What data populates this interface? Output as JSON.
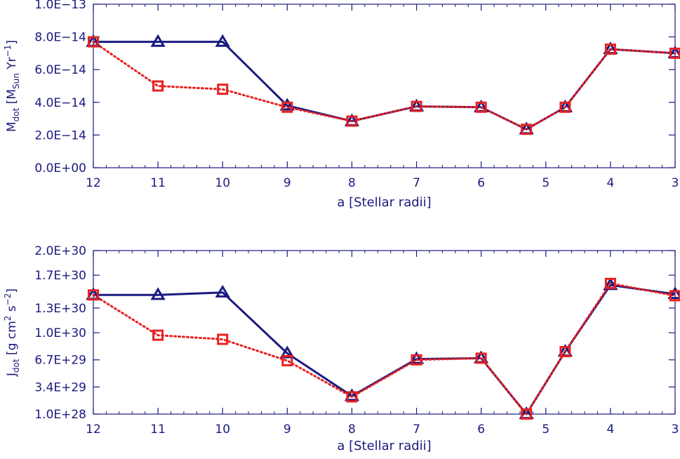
{
  "colors": {
    "axis": "#1a1a80",
    "series_blue": "#1a1a80",
    "series_red": "#e82020"
  },
  "chart_data": [
    {
      "type": "line",
      "x": [
        12,
        11,
        10,
        9,
        8,
        7,
        6,
        5.3,
        4.7,
        4,
        3
      ],
      "x_tick_values": [
        12,
        11,
        10,
        9,
        8,
        7,
        6,
        5,
        4,
        3
      ],
      "x_tick_labels": [
        "12",
        "11",
        "10",
        "9",
        "8",
        "7",
        "6",
        "5",
        "4",
        "3"
      ],
      "xlim": [
        12,
        3
      ],
      "xlabel": "a [Stellar radii]",
      "ylabel": {
        "main": "M",
        "sub1": "dot",
        "mid": " [M",
        "sub2": "Sun",
        "rest": " Yr",
        "sup": "−1",
        "end": "]"
      },
      "ylim": [
        0,
        1e-13
      ],
      "y_tick_values": [
        0,
        2e-14,
        4e-14,
        6e-14,
        8e-14,
        1e-13
      ],
      "y_tick_labels": [
        "0.0E+00",
        "2.0E−14",
        "4.0E−14",
        "6.0E−14",
        "8.0E−14",
        "1.0E−13"
      ],
      "series": [
        {
          "marker": "triangle",
          "line": "solid",
          "color": "#1a1a80",
          "values": [
            7.7e-14,
            7.7e-14,
            7.7e-14,
            3.8e-14,
            2.85e-14,
            3.75e-14,
            3.7e-14,
            2.35e-14,
            3.7e-14,
            7.25e-14,
            7e-14
          ]
        },
        {
          "marker": "square",
          "line": "dotted",
          "color": "#e82020",
          "values": [
            7.7e-14,
            5e-14,
            4.8e-14,
            3.7e-14,
            2.85e-14,
            3.75e-14,
            3.7e-14,
            2.35e-14,
            3.7e-14,
            7.25e-14,
            7e-14
          ]
        }
      ]
    },
    {
      "type": "line",
      "x": [
        12,
        11,
        10,
        9,
        8,
        7,
        6,
        5.3,
        4.7,
        4,
        3
      ],
      "x_tick_values": [
        12,
        11,
        10,
        9,
        8,
        7,
        6,
        5,
        4,
        3
      ],
      "x_tick_labels": [
        "12",
        "11",
        "10",
        "9",
        "8",
        "7",
        "6",
        "5",
        "4",
        "3"
      ],
      "xlim": [
        12,
        3
      ],
      "xlabel": "a [Stellar radii]",
      "ylabel": {
        "main": "J",
        "sub1": "dot",
        "mid": " [g cm",
        "sup1": "2",
        "mid2": " s",
        "sup2": "−2",
        "end": "]"
      },
      "ylim": [
        1e+28,
        2e+30
      ],
      "y_tick_values": [
        1e+28,
        3.4e+29,
        6.7e+29,
        1e+30,
        1.3e+30,
        1.7e+30,
        2e+30
      ],
      "y_tick_labels": [
        "1.0E+28",
        "3.4E+29",
        "6.7E+29",
        "1.0E+30",
        "1.3E+30",
        "1.7E+30",
        "2.0E+30"
      ],
      "series": [
        {
          "marker": "triangle",
          "line": "solid",
          "color": "#1a1a80",
          "values": [
            1.46e+30,
            1.46e+30,
            1.49e+30,
            7.5e+29,
            2.3e+29,
            6.8e+29,
            6.9e+29,
            1e+28,
            7.7e+29,
            1.58e+30,
            1.47e+30
          ]
        },
        {
          "marker": "square",
          "line": "dotted",
          "color": "#e82020",
          "values": [
            1.46e+30,
            9.7e+29,
            9.2e+29,
            6.6e+29,
            2.2e+29,
            6.7e+29,
            6.9e+29,
            1e+28,
            7.7e+29,
            1.6e+30,
            1.45e+30
          ]
        }
      ]
    }
  ]
}
